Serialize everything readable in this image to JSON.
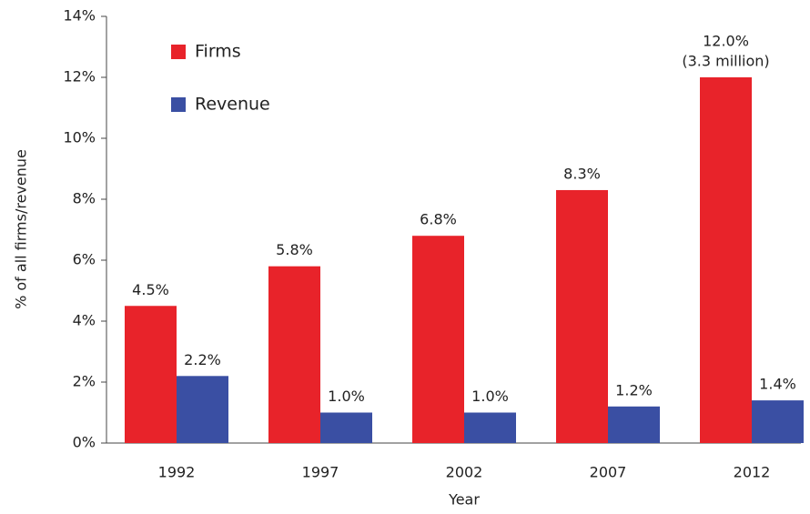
{
  "chart_data": {
    "type": "bar",
    "x_label": "Year",
    "y_label": "% of all firms/revenue",
    "categories": [
      "1992",
      "1997",
      "2002",
      "2007",
      "2012"
    ],
    "series": [
      {
        "name": "Firms",
        "color": "#e8232a",
        "values": [
          4.5,
          5.8,
          6.8,
          8.3,
          12.0
        ],
        "value_labels": [
          "4.5%",
          "5.8%",
          "6.8%",
          "8.3%",
          "12.0%"
        ]
      },
      {
        "name": "Revenue",
        "color": "#3a4fa3",
        "values": [
          2.2,
          1.0,
          1.0,
          1.2,
          1.4
        ],
        "value_labels": [
          "2.2%",
          "1.0%",
          "1.0%",
          "1.2%",
          "1.4%"
        ]
      }
    ],
    "annotation": "(3.3 million)",
    "ylim": [
      0,
      14
    ],
    "yticks": [
      {
        "value": 0,
        "label": "0%"
      },
      {
        "value": 2,
        "label": "2%"
      },
      {
        "value": 4,
        "label": "4%"
      },
      {
        "value": 6,
        "label": "6%"
      },
      {
        "value": 8,
        "label": "8%"
      },
      {
        "value": 10,
        "label": "10%"
      },
      {
        "value": 12,
        "label": "12%"
      },
      {
        "value": 14,
        "label": "14%"
      }
    ],
    "legend": "upper left",
    "grid": false
  }
}
